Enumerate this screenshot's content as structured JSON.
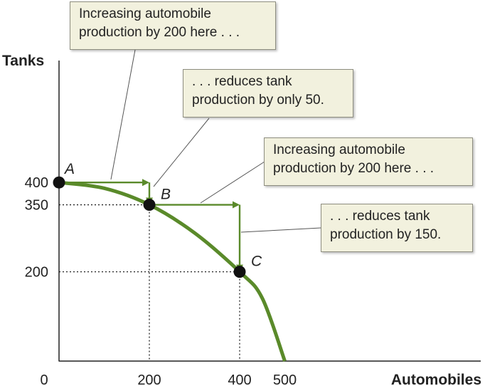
{
  "chart_data": {
    "type": "line",
    "xlabel": "Automobiles",
    "ylabel": "Tanks",
    "x_ticks": [
      "0",
      "200",
      "400",
      "500"
    ],
    "y_ticks": [
      "400",
      "350",
      "200"
    ],
    "xlim": [
      0,
      500
    ],
    "ylim": [
      0,
      400
    ],
    "curve": {
      "color": "#5a8a2a",
      "points": [
        {
          "x": 0,
          "y": 400
        },
        {
          "x": 100,
          "y": 387
        },
        {
          "x": 200,
          "y": 350
        },
        {
          "x": 300,
          "y": 287
        },
        {
          "x": 400,
          "y": 200
        },
        {
          "x": 450,
          "y": 141
        },
        {
          "x": 500,
          "y": 0
        }
      ]
    },
    "labeled_points": [
      {
        "label": "A",
        "x": 0,
        "y": 400
      },
      {
        "label": "B",
        "x": 200,
        "y": 350
      },
      {
        "label": "C",
        "x": 400,
        "y": 200
      }
    ],
    "arrows": [
      {
        "from": [
          0,
          400
        ],
        "to": [
          200,
          400
        ]
      },
      {
        "from": [
          200,
          400
        ],
        "to": [
          200,
          350
        ]
      },
      {
        "from": [
          200,
          350
        ],
        "to": [
          400,
          350
        ]
      },
      {
        "from": [
          400,
          350
        ],
        "to": [
          400,
          200
        ]
      }
    ],
    "annotations": [
      "Increasing automobile\nproduction by 200 here . . .",
      ". . . reduces tank\nproduction by only 50.",
      "Increasing automobile\nproduction by 200 here . . .",
      ". . . reduces tank\nproduction by 150."
    ],
    "grid": false,
    "accent_color": "#5a8a2a"
  }
}
